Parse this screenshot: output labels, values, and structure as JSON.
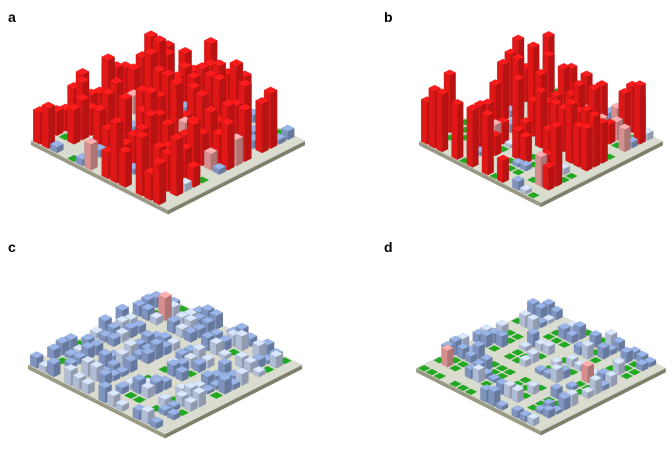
{
  "panels": [
    {
      "id": "a",
      "label": "a",
      "variant": "dense-tall",
      "tall_share": 0.78,
      "green_share": 0.08,
      "seed": 11
    },
    {
      "id": "b",
      "label": "b",
      "variant": "sparse-tall",
      "tall_share": 0.62,
      "green_share": 0.3,
      "seed": 29
    },
    {
      "id": "c",
      "label": "c",
      "variant": "dense-low",
      "tall_share": 0.0,
      "green_share": 0.1,
      "seed": 47
    },
    {
      "id": "d",
      "label": "d",
      "variant": "sparse-low",
      "tall_share": 0.0,
      "green_share": 0.38,
      "seed": 83
    }
  ],
  "colors": {
    "road": "#d9dccf",
    "green_space": "#1faa1f",
    "tall_building": "#ff1a1a",
    "mid_building": "#f2a3a3",
    "low_building": "#8fa8d8",
    "low_building_light": "#c9d6f2",
    "platform_edge": "#5a7a3a",
    "background": "#ffffff"
  }
}
